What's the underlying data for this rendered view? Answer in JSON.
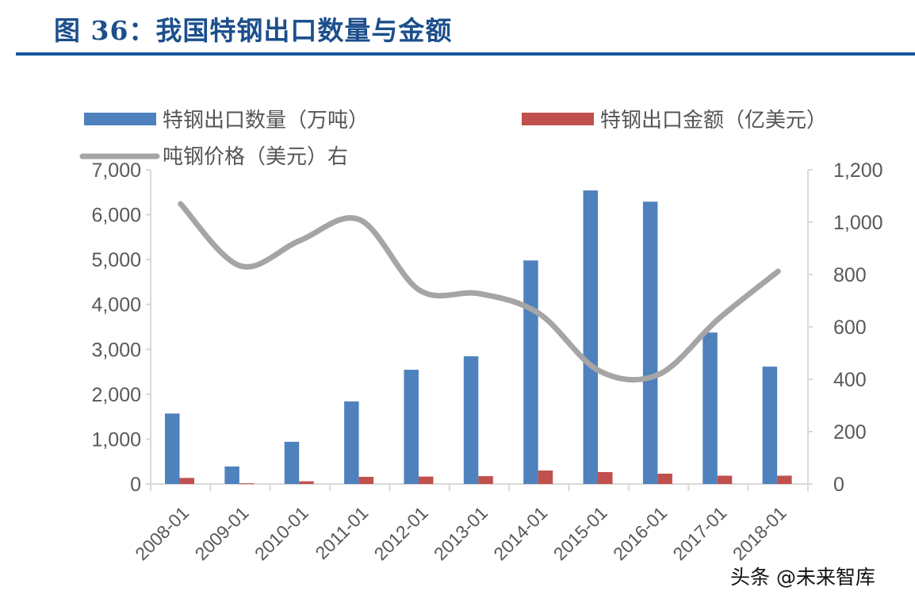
{
  "title": "图 36：我国特钢出口数量与金额",
  "watermark": "头条 @未来智库",
  "colors": {
    "title": "#1c4f8c",
    "rule": "#1657a0",
    "blue": "#4f81bd",
    "red": "#c0504d",
    "gray": "#a5a5a5",
    "axis": "#d9d9d9",
    "text": "#595959"
  },
  "legend": [
    {
      "name": "特钢出口数量（万吨）",
      "type": "bar",
      "color": "#4f81bd"
    },
    {
      "name": "特钢出口金额（亿美元）",
      "type": "bar",
      "color": "#c0504d"
    },
    {
      "name": "吨钢价格（美元）右",
      "type": "line",
      "color": "#a5a5a5"
    }
  ],
  "chart_data": {
    "type": "bar",
    "title": "我国特钢出口数量与金额",
    "categories": [
      "2008-01",
      "2009-01",
      "2010-01",
      "2011-01",
      "2012-01",
      "2013-01",
      "2014-01",
      "2015-01",
      "2016-01",
      "2017-01",
      "2018-01"
    ],
    "series": [
      {
        "name": "特钢出口数量（万吨）",
        "type": "bar",
        "axis": "left",
        "values": [
          1570,
          390,
          940,
          1840,
          2545,
          2845,
          4980,
          6540,
          6290,
          3375,
          2615
        ]
      },
      {
        "name": "特钢出口金额（亿美元）",
        "type": "bar",
        "axis": "left",
        "values": [
          135,
          15,
          60,
          160,
          165,
          175,
          300,
          265,
          230,
          185,
          185
        ]
      },
      {
        "name": "吨钢价格（美元）右",
        "type": "line",
        "axis": "right",
        "smooth": true,
        "values": [
          1070,
          833,
          930,
          1009,
          740,
          727,
          651,
          433,
          418,
          630,
          812
        ]
      }
    ],
    "xlabel": "",
    "ylabel": "",
    "ylim": [
      0,
      7000
    ],
    "y2lim": [
      0,
      1200
    ],
    "yticks": [
      "0",
      "1,000",
      "2,000",
      "3,000",
      "4,000",
      "5,000",
      "6,000",
      "7,000"
    ],
    "y2ticks": [
      "0",
      "200",
      "400",
      "600",
      "800",
      "1,000",
      "1,200"
    ],
    "grid": false,
    "legend_position": "top"
  }
}
